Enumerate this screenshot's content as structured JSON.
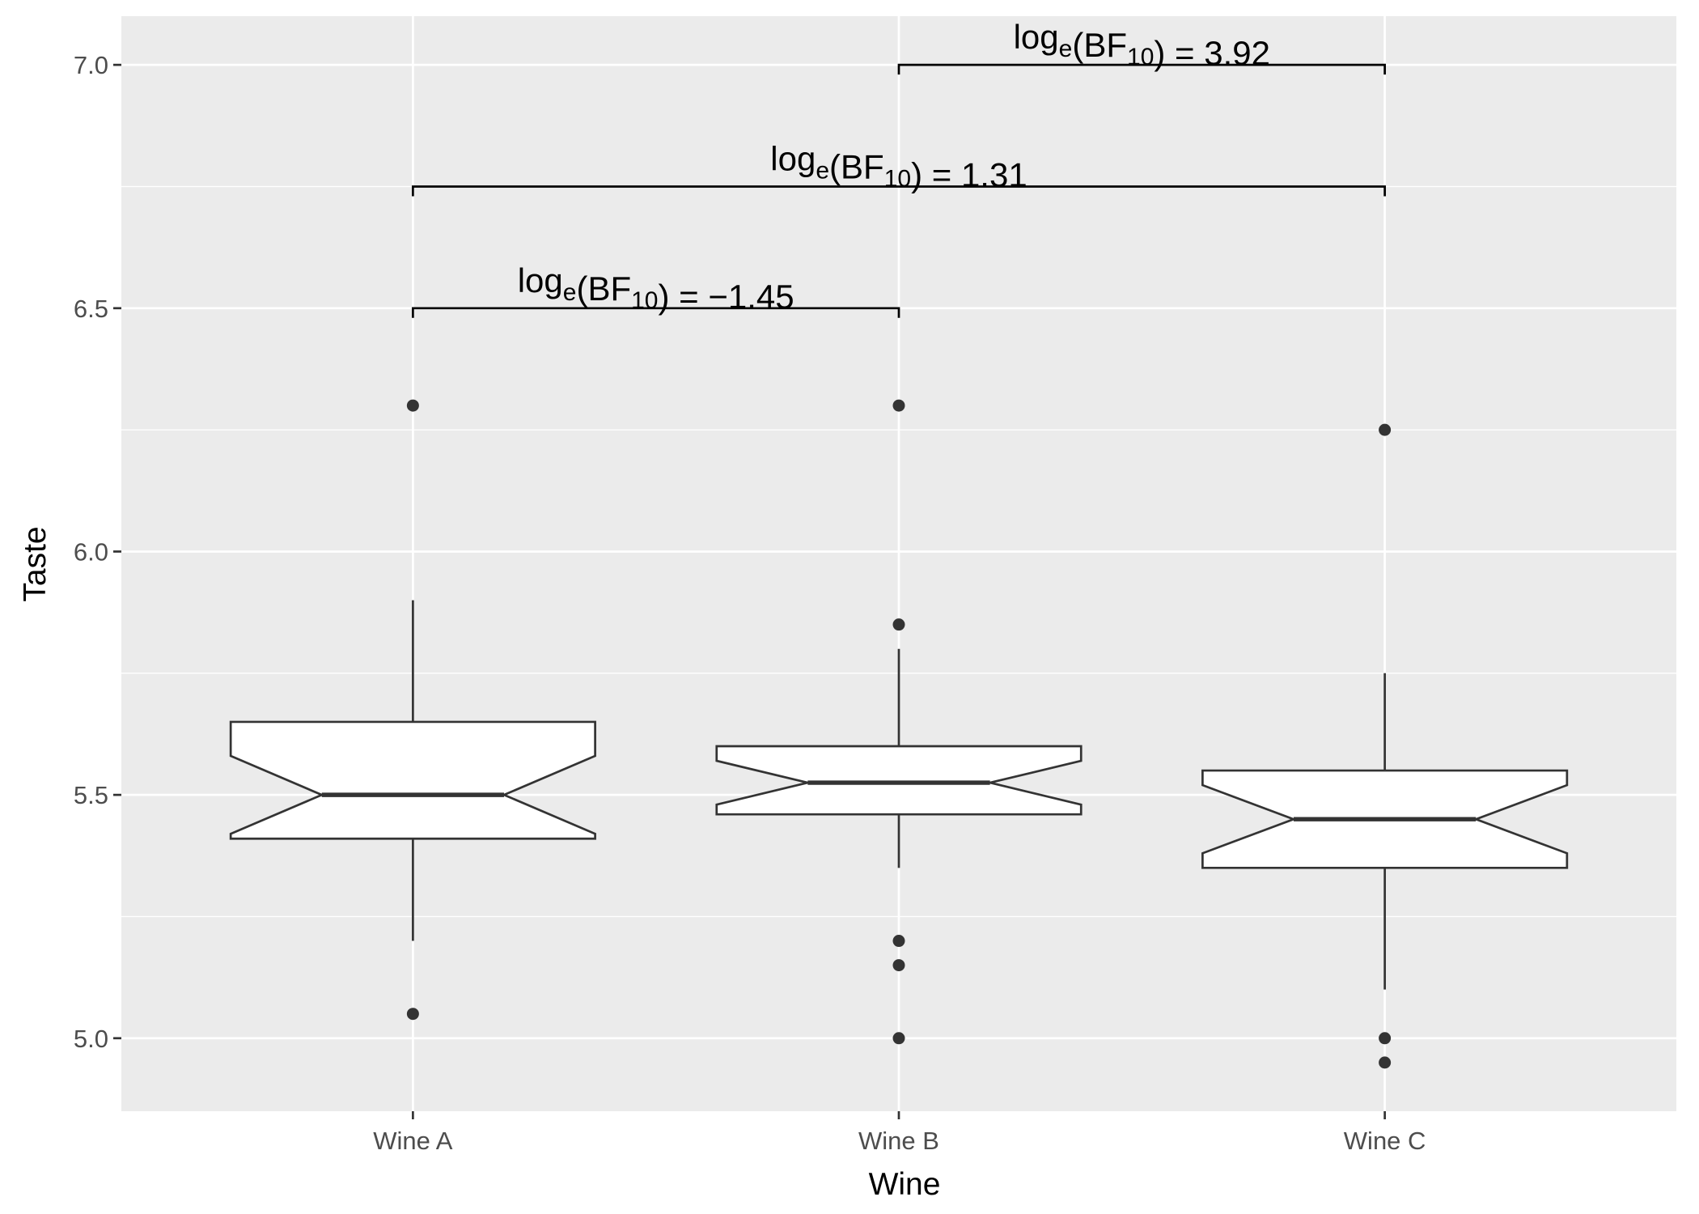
{
  "chart_data": {
    "type": "boxplot",
    "notched": true,
    "xlabel": "Wine",
    "ylabel": "Taste",
    "categories": [
      "Wine A",
      "Wine B",
      "Wine C"
    ],
    "ylim": [
      4.85,
      7.1
    ],
    "y_ticks": [
      "5.0",
      "5.5",
      "6.0",
      "6.5",
      "7.0"
    ],
    "grid": true,
    "boxes": [
      {
        "name": "Wine A",
        "q1": 5.41,
        "median": 5.5,
        "q3": 5.65,
        "notch_low": 5.42,
        "notch_high": 5.58,
        "whisker_low": 5.2,
        "whisker_high": 5.9,
        "outliers": [
          6.3,
          5.05
        ]
      },
      {
        "name": "Wine B",
        "q1": 5.46,
        "median": 5.525,
        "q3": 5.6,
        "notch_low": 5.48,
        "notch_high": 5.57,
        "whisker_low": 5.35,
        "whisker_high": 5.8,
        "outliers": [
          6.3,
          5.85,
          5.2,
          5.15,
          5.0
        ]
      },
      {
        "name": "Wine C",
        "q1": 5.35,
        "median": 5.45,
        "q3": 5.55,
        "notch_low": 5.38,
        "notch_high": 5.52,
        "whisker_low": 5.1,
        "whisker_high": 5.75,
        "outliers": [
          6.25,
          5.0,
          4.95
        ]
      }
    ],
    "comparisons": [
      {
        "from": 0,
        "to": 1,
        "y": 6.5,
        "label": {
          "log": "log",
          "e": "e",
          "open": "(",
          "bf": "BF",
          "sub10": "10",
          "close": ")",
          "eq": " = ",
          "value": "−1.45"
        }
      },
      {
        "from": 0,
        "to": 2,
        "y": 6.75,
        "label": {
          "log": "log",
          "e": "e",
          "open": "(",
          "bf": "BF",
          "sub10": "10",
          "close": ")",
          "eq": " = ",
          "value": "1.31"
        }
      },
      {
        "from": 1,
        "to": 2,
        "y": 7.0,
        "label": {
          "log": "log",
          "e": "e",
          "open": "(",
          "bf": "BF",
          "sub10": "10",
          "close": ")",
          "eq": " = ",
          "value": "3.92"
        }
      }
    ],
    "colors": {
      "panel": "#ebebeb",
      "grid": "#ffffff",
      "box_fill": "#ffffff",
      "box_line": "#333333",
      "outlier": "#333333",
      "bracket": "#000000"
    }
  }
}
